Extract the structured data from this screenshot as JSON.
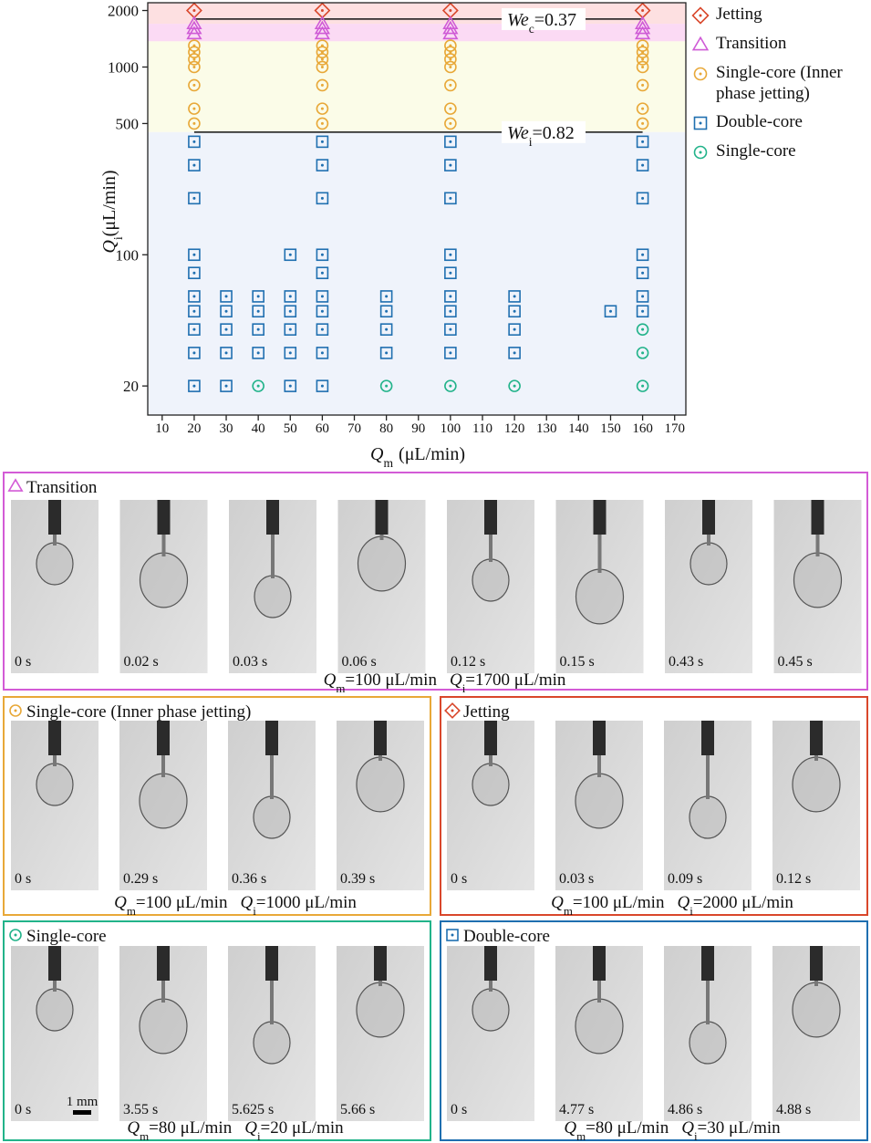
{
  "chart_data": {
    "type": "scatter",
    "yscale": "log",
    "ylabel": {
      "symbol": "Q",
      "subscript": "i",
      "unit": "(μL/min)"
    },
    "xlabel": {
      "symbol": "Q",
      "subscript": "m",
      "unit": "(μL/min)"
    },
    "xlim": [
      5.5,
      173.5
    ],
    "xticks": [
      10,
      20,
      30,
      40,
      50,
      60,
      70,
      80,
      90,
      100,
      110,
      120,
      130,
      140,
      150,
      160,
      170
    ],
    "ylim": [
      14,
      2200
    ],
    "yticks": [
      20,
      100,
      500,
      1000,
      2000
    ],
    "legend": "right",
    "regions": [
      {
        "range": [
          1700,
          2200
        ],
        "color": "#fde0e1"
      },
      {
        "range": [
          1370,
          1700
        ],
        "color": "#fbdaf4"
      },
      {
        "range": [
          450,
          1370
        ],
        "color": "#fbfce8"
      },
      {
        "range": [
          14,
          450
        ],
        "color": "#eff3fb"
      }
    ],
    "reference_lines": [
      {
        "label": "We",
        "subscript": "c",
        "text": "=0.37",
        "y": 1800,
        "x": [
          20,
          160
        ]
      },
      {
        "label": "We",
        "subscript": "i",
        "text": "=0.82",
        "y": 450,
        "x": [
          20,
          160
        ]
      }
    ],
    "series": [
      {
        "name": "Jetting",
        "marker": "diamond",
        "color": "#d9472b",
        "x": [
          20,
          60,
          100,
          160
        ],
        "values": [
          2000,
          2000,
          2000,
          2000
        ]
      },
      {
        "name": "Transition",
        "marker": "triangle",
        "color": "#cf5bd6",
        "x": [
          20,
          20,
          20,
          60,
          60,
          60,
          100,
          100,
          100,
          160,
          160,
          160
        ],
        "values": [
          1700,
          1600,
          1500,
          1700,
          1600,
          1500,
          1700,
          1600,
          1500,
          1700,
          1600,
          1500
        ]
      },
      {
        "name": "Single-core (Inner phase jetting)",
        "marker": "circle",
        "color": "#e8a838",
        "x": [
          20,
          20,
          20,
          20,
          20,
          20,
          20,
          60,
          60,
          60,
          60,
          60,
          60,
          60,
          100,
          100,
          100,
          100,
          100,
          100,
          100,
          160,
          160,
          160,
          160,
          160,
          160,
          160
        ],
        "values": [
          1300,
          1200,
          1100,
          1000,
          800,
          600,
          500,
          1300,
          1200,
          1100,
          1000,
          800,
          600,
          500,
          1300,
          1200,
          1100,
          1000,
          800,
          600,
          500,
          1300,
          1200,
          1100,
          1000,
          800,
          600,
          500
        ]
      },
      {
        "name": "Double-core",
        "marker": "square",
        "color": "#1f6fb0",
        "x": [
          20,
          20,
          20,
          20,
          20,
          20,
          20,
          20,
          20,
          20,
          30,
          30,
          30,
          30,
          30,
          40,
          40,
          40,
          40,
          50,
          50,
          50,
          50,
          50,
          50,
          60,
          60,
          60,
          60,
          60,
          60,
          60,
          60,
          60,
          60,
          80,
          80,
          80,
          80,
          100,
          100,
          100,
          100,
          100,
          100,
          100,
          100,
          100,
          120,
          120,
          120,
          120,
          150,
          160,
          160,
          160,
          160,
          160,
          160,
          160
        ],
        "values": [
          400,
          300,
          200,
          100,
          80,
          60,
          50,
          40,
          30,
          20,
          60,
          50,
          40,
          30,
          20,
          60,
          50,
          40,
          30,
          100,
          60,
          50,
          40,
          30,
          20,
          400,
          300,
          200,
          100,
          80,
          60,
          50,
          40,
          30,
          20,
          60,
          50,
          40,
          30,
          400,
          300,
          200,
          100,
          80,
          60,
          50,
          40,
          30,
          60,
          50,
          40,
          30,
          50,
          400,
          300,
          200,
          100,
          80,
          60,
          50
        ]
      },
      {
        "name": "Single-core",
        "marker": "circle",
        "color": "#22b38a",
        "x": [
          40,
          80,
          100,
          120,
          160,
          160,
          160
        ],
        "values": [
          20,
          20,
          20,
          20,
          40,
          30,
          20
        ]
      }
    ]
  },
  "panels": [
    {
      "title": "Transition",
      "marker": "triangle",
      "color": "#d35bd6",
      "frames": [
        "0 s",
        "0.02 s",
        "0.03 s",
        "0.06 s",
        "0.12 s",
        "0.15 s",
        "0.43 s",
        "0.45 s"
      ],
      "conditions": [
        {
          "symbol": "Q",
          "subscript": "m",
          "text": "=100 μL/min"
        },
        {
          "symbol": "Q",
          "subscript": "i",
          "text": "=1700 μL/min"
        }
      ]
    },
    {
      "title": "Single-core (Inner phase jetting)",
      "marker": "circle",
      "color": "#e8a838",
      "frames": [
        "0 s",
        "0.29 s",
        "0.36 s",
        "0.39 s"
      ],
      "conditions": [
        {
          "symbol": "Q",
          "subscript": "m",
          "text": "=100 μL/min"
        },
        {
          "symbol": "Q",
          "subscript": "i",
          "text": "=1000 μL/min"
        }
      ]
    },
    {
      "title": "Jetting",
      "marker": "diamond",
      "color": "#d9472b",
      "frames": [
        "0 s",
        "0.03 s",
        "0.09 s",
        "0.12 s"
      ],
      "conditions": [
        {
          "symbol": "Q",
          "subscript": "m",
          "text": "=100 μL/min"
        },
        {
          "symbol": "Q",
          "subscript": "i",
          "text": "=2000 μL/min"
        }
      ]
    },
    {
      "title": "Single-core",
      "marker": "circle",
      "color": "#22b38a",
      "frames": [
        "0 s",
        "3.55 s",
        "5.625 s",
        "5.66 s"
      ],
      "scale_bar": "1 mm",
      "conditions": [
        {
          "symbol": "Q",
          "subscript": "m",
          "text": "=80 μL/min"
        },
        {
          "symbol": "Q",
          "subscript": "i",
          "text": "=20 μL/min"
        }
      ]
    },
    {
      "title": "Double-core",
      "marker": "square",
      "color": "#1f6fb0",
      "frames": [
        "0 s",
        "4.77 s",
        "4.86 s",
        "4.88 s"
      ],
      "conditions": [
        {
          "symbol": "Q",
          "subscript": "m",
          "text": "=80 μL/min"
        },
        {
          "symbol": "Q",
          "subscript": "i",
          "text": "=30 μL/min"
        }
      ]
    }
  ]
}
